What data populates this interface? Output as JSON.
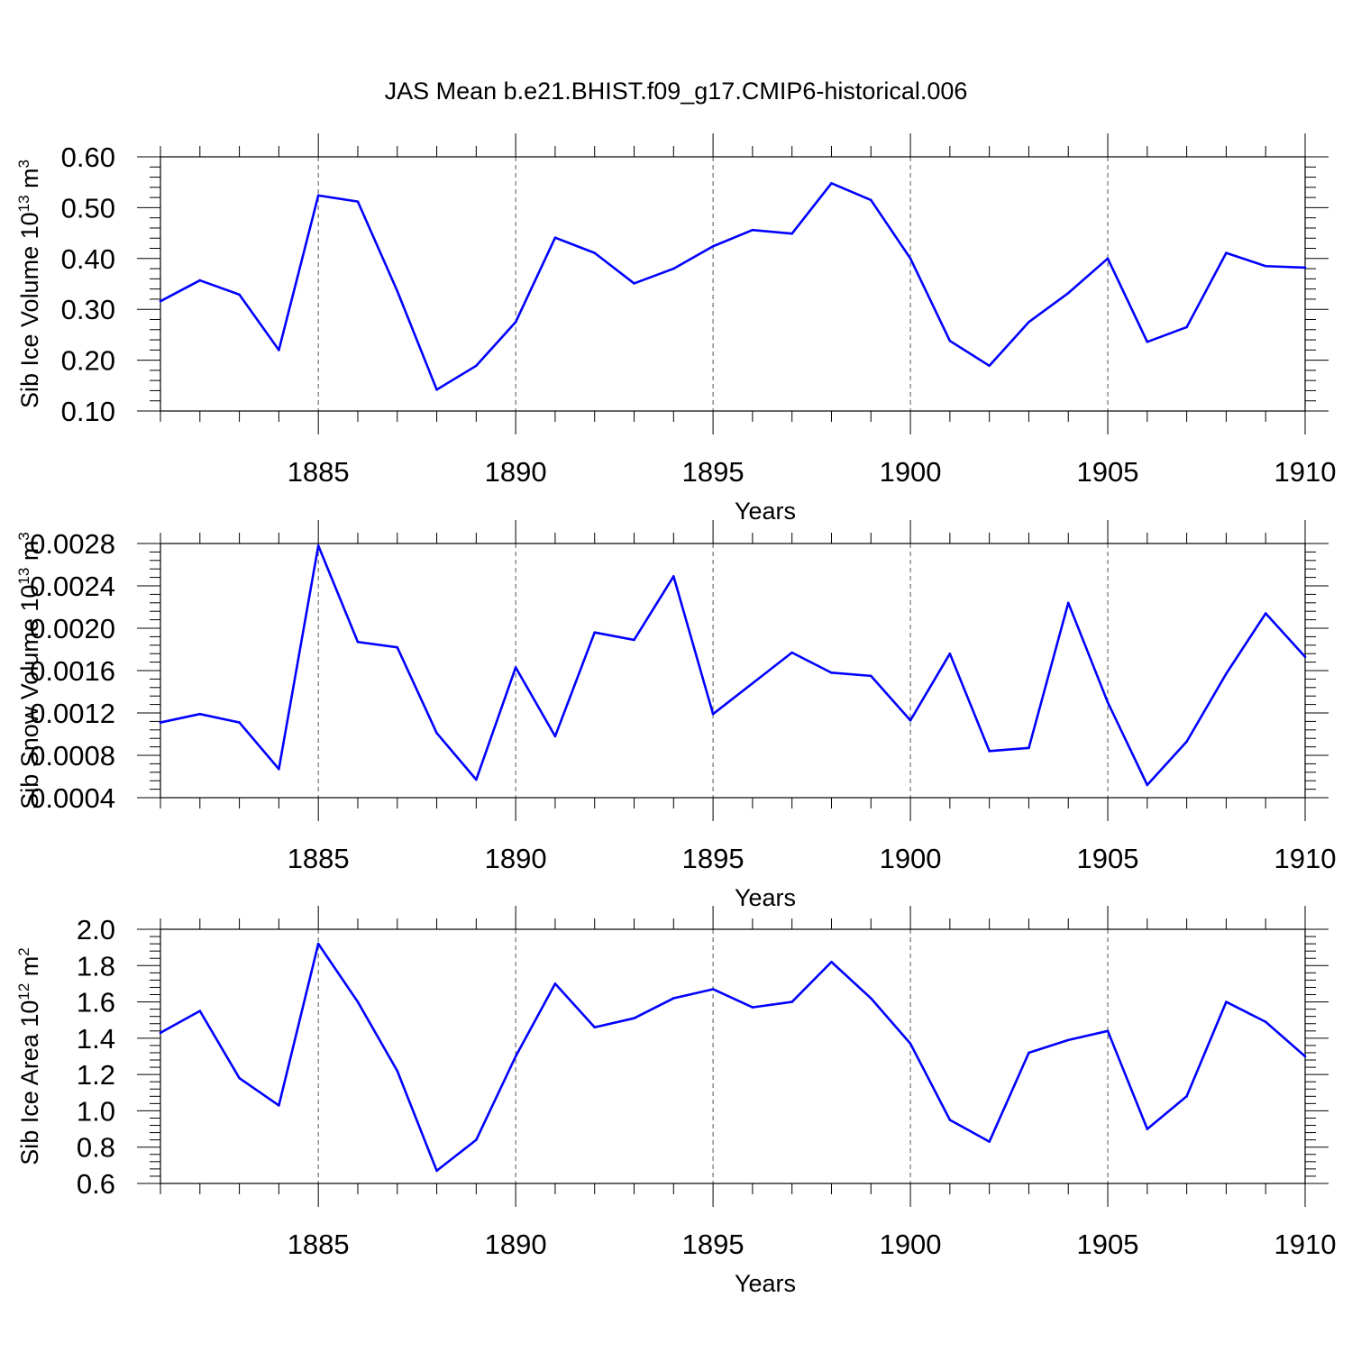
{
  "figure_title": "JAS Mean b.e21.BHIST.f09_g17.CMIP6-historical.006",
  "colors": {
    "line": "#0000ff",
    "axis": "#000000",
    "grid": "#555555"
  },
  "chart_data": [
    {
      "type": "line",
      "title": "JAS Mean b.e21.BHIST.f09_g17.CMIP6-historical.006",
      "xlabel": "Years",
      "ylabel": {
        "prefix": "Sib Ice Volume 10",
        "exponent": "13",
        "unit": " m",
        "unit_exponent": "3"
      },
      "xlim": [
        1881,
        1910
      ],
      "ylim": [
        0.1,
        0.6
      ],
      "xticks": [
        1885,
        1890,
        1895,
        1900,
        1905,
        1910
      ],
      "yticks": [
        "0.10",
        "0.20",
        "0.30",
        "0.40",
        "0.50",
        "0.60"
      ],
      "grid": "vertical dashed at major x ticks",
      "x": [
        1881,
        1882,
        1883,
        1884,
        1885,
        1886,
        1887,
        1888,
        1889,
        1890,
        1891,
        1892,
        1893,
        1894,
        1895,
        1896,
        1897,
        1898,
        1899,
        1900,
        1901,
        1902,
        1903,
        1904,
        1905,
        1906,
        1907,
        1908,
        1909,
        1910
      ],
      "series": [
        {
          "values": [
            0.316,
            0.357,
            0.329,
            0.22,
            0.524,
            0.512,
            0.336,
            0.142,
            0.189,
            0.275,
            0.441,
            0.411,
            0.351,
            0.38,
            0.424,
            0.456,
            0.449,
            0.548,
            0.515,
            0.4,
            0.238,
            0.189,
            0.275,
            0.332,
            0.4,
            0.236,
            0.265,
            0.411,
            0.385,
            0.382
          ]
        }
      ]
    },
    {
      "type": "line",
      "xlabel": "Years",
      "ylabel": {
        "prefix": "Sib Snow Volume 10",
        "exponent": "13",
        "unit": " m",
        "unit_exponent": "3"
      },
      "xlim": [
        1881,
        1910
      ],
      "ylim": [
        0.0004,
        0.0028
      ],
      "xticks": [
        1885,
        1890,
        1895,
        1900,
        1905,
        1910
      ],
      "yticks": [
        "0.0004",
        "0.0008",
        "0.0012",
        "0.0016",
        "0.0020",
        "0.0024",
        "0.0028"
      ],
      "grid": "vertical dashed at major x ticks",
      "x": [
        1881,
        1882,
        1883,
        1884,
        1885,
        1886,
        1887,
        1888,
        1889,
        1890,
        1891,
        1892,
        1893,
        1894,
        1895,
        1896,
        1897,
        1898,
        1899,
        1900,
        1901,
        1902,
        1903,
        1904,
        1905,
        1906,
        1907,
        1908,
        1909,
        1910
      ],
      "series": [
        {
          "values": [
            0.00111,
            0.00119,
            0.00111,
            0.00067,
            0.00278,
            0.00187,
            0.00182,
            0.00101,
            0.00057,
            0.00163,
            0.00098,
            0.00196,
            0.00189,
            0.00249,
            0.00119,
            0.00148,
            0.00177,
            0.00158,
            0.00155,
            0.00113,
            0.00176,
            0.00084,
            0.00087,
            0.00224,
            0.0013,
            0.00052,
            0.00093,
            0.00157,
            0.00214,
            0.00173
          ]
        }
      ]
    },
    {
      "type": "line",
      "xlabel": "Years",
      "ylabel": {
        "prefix": "Sib Ice Area 10",
        "exponent": "12",
        "unit": " m",
        "unit_exponent": "2"
      },
      "xlim": [
        1881,
        1910
      ],
      "ylim": [
        0.6,
        2.0
      ],
      "xticks": [
        1885,
        1890,
        1895,
        1900,
        1905,
        1910
      ],
      "yticks": [
        "0.6",
        "0.8",
        "1.0",
        "1.2",
        "1.4",
        "1.6",
        "1.8",
        "2.0"
      ],
      "grid": "vertical dashed at major x ticks",
      "x": [
        1881,
        1882,
        1883,
        1884,
        1885,
        1886,
        1887,
        1888,
        1889,
        1890,
        1891,
        1892,
        1893,
        1894,
        1895,
        1896,
        1897,
        1898,
        1899,
        1900,
        1901,
        1902,
        1903,
        1904,
        1905,
        1906,
        1907,
        1908,
        1909,
        1910
      ],
      "series": [
        {
          "values": [
            1.43,
            1.55,
            1.18,
            1.03,
            1.92,
            1.6,
            1.22,
            0.67,
            0.84,
            1.3,
            1.7,
            1.46,
            1.51,
            1.62,
            1.67,
            1.57,
            1.6,
            1.82,
            1.62,
            1.37,
            0.95,
            0.83,
            1.32,
            1.39,
            1.44,
            0.9,
            1.08,
            1.6,
            1.49,
            1.3
          ]
        }
      ]
    }
  ]
}
